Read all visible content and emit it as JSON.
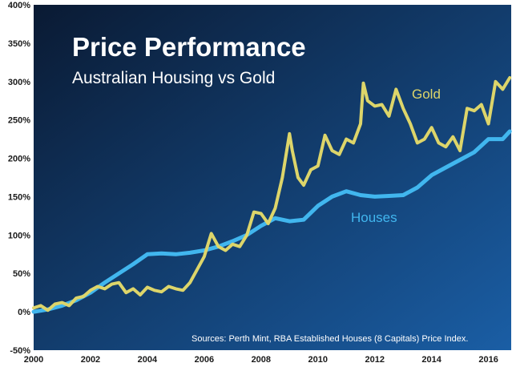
{
  "chart_data": {
    "type": "line",
    "title": "Price Performance",
    "subtitle": "Australian Housing vs Gold",
    "source": "Sources: Perth Mint, RBA Established Houses (8 Capitals) Price Index.",
    "ylim": [
      -50,
      400
    ],
    "xlim": [
      2000,
      2016.8
    ],
    "y_ticks": [
      -50,
      0,
      50,
      100,
      150,
      200,
      250,
      300,
      350,
      400
    ],
    "y_tick_labels": [
      "-50%",
      "0%",
      "50%",
      "100%",
      "150%",
      "200%",
      "250%",
      "300%",
      "350%",
      "400%"
    ],
    "x_ticks": [
      2000,
      2002,
      2004,
      2006,
      2008,
      2010,
      2012,
      2014,
      2016
    ],
    "x_tick_labels": [
      "2000",
      "2002",
      "2004",
      "2006",
      "2008",
      "2010",
      "2012",
      "2014",
      "2016"
    ],
    "grid": false,
    "colors": {
      "background_dark": "#0a1a33",
      "background_light": "#1a5ea5",
      "gold": "#ddd56a",
      "houses": "#41b6ee",
      "text": "#ffffff"
    },
    "series": [
      {
        "name": "Gold",
        "color": "#ddd56a",
        "x": [
          2000.0,
          2000.25,
          2000.5,
          2000.75,
          2001.0,
          2001.25,
          2001.5,
          2001.75,
          2002.0,
          2002.25,
          2002.5,
          2002.75,
          2003.0,
          2003.25,
          2003.5,
          2003.75,
          2004.0,
          2004.25,
          2004.5,
          2004.75,
          2005.0,
          2005.25,
          2005.5,
          2005.75,
          2006.0,
          2006.25,
          2006.5,
          2006.75,
          2007.0,
          2007.25,
          2007.5,
          2007.75,
          2008.0,
          2008.25,
          2008.5,
          2008.75,
          2009.0,
          2009.1,
          2009.3,
          2009.5,
          2009.75,
          2010.0,
          2010.25,
          2010.5,
          2010.75,
          2011.0,
          2011.25,
          2011.5,
          2011.6,
          2011.75,
          2012.0,
          2012.25,
          2012.5,
          2012.75,
          2013.0,
          2013.25,
          2013.5,
          2013.75,
          2014.0,
          2014.25,
          2014.5,
          2014.75,
          2015.0,
          2015.25,
          2015.5,
          2015.75,
          2016.0,
          2016.25,
          2016.5,
          2016.75
        ],
        "values": [
          5,
          8,
          2,
          10,
          12,
          8,
          18,
          20,
          28,
          33,
          30,
          36,
          38,
          25,
          30,
          22,
          32,
          28,
          26,
          33,
          30,
          28,
          38,
          55,
          72,
          102,
          85,
          80,
          88,
          85,
          100,
          130,
          128,
          115,
          135,
          175,
          232,
          210,
          175,
          165,
          185,
          190,
          230,
          210,
          205,
          225,
          220,
          245,
          298,
          275,
          268,
          270,
          255,
          290,
          265,
          245,
          220,
          225,
          240,
          220,
          215,
          228,
          210,
          265,
          262,
          270,
          245,
          300,
          290,
          305
        ]
      },
      {
        "name": "Houses",
        "color": "#41b6ee",
        "x": [
          2000.0,
          2000.5,
          2001.0,
          2001.5,
          2002.0,
          2002.5,
          2003.0,
          2003.5,
          2004.0,
          2004.5,
          2005.0,
          2005.5,
          2006.0,
          2006.5,
          2007.0,
          2007.5,
          2008.0,
          2008.5,
          2009.0,
          2009.5,
          2010.0,
          2010.5,
          2011.0,
          2011.5,
          2012.0,
          2012.5,
          2013.0,
          2013.5,
          2014.0,
          2014.5,
          2015.0,
          2015.5,
          2016.0,
          2016.5,
          2016.75
        ],
        "values": [
          0,
          3,
          8,
          15,
          25,
          38,
          50,
          62,
          75,
          76,
          75,
          77,
          80,
          85,
          92,
          100,
          112,
          122,
          118,
          120,
          138,
          150,
          157,
          152,
          150,
          151,
          152,
          162,
          178,
          188,
          198,
          208,
          225,
          225,
          235
        ]
      }
    ]
  }
}
